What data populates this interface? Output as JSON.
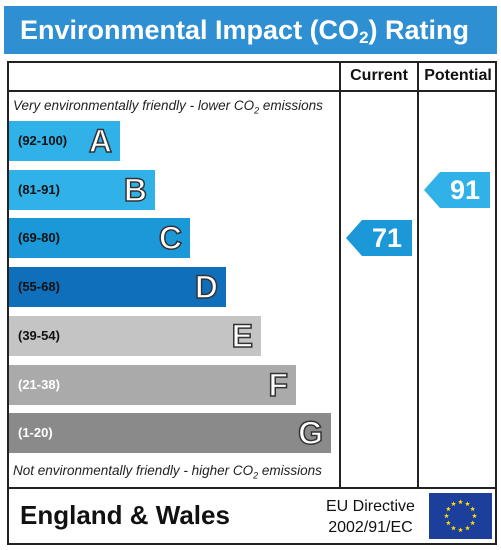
{
  "header": {
    "title_pre": "Environmental Impact (CO",
    "title_sub": "2",
    "title_post": ") Rating"
  },
  "columns": {
    "current": "Current",
    "potential": "Potential"
  },
  "notes": {
    "top_pre": "Very environmentally friendly - lower CO",
    "top_sub": "2",
    "top_post": " emissions",
    "bottom_pre": "Not environmentally friendly - higher CO",
    "bottom_sub": "2",
    "bottom_post": " emissions"
  },
  "chart_data": {
    "type": "bar",
    "title": "Environmental Impact (CO2) Rating",
    "bands": [
      {
        "range": "(92-100)",
        "letter": "A",
        "color": "#30b1e8",
        "range_color": "#111111"
      },
      {
        "range": "(81-91)",
        "letter": "B",
        "color": "#30b1e8",
        "range_color": "#111111"
      },
      {
        "range": "(69-80)",
        "letter": "C",
        "color": "#1a98d8",
        "range_color": "#111111"
      },
      {
        "range": "(55-68)",
        "letter": "D",
        "color": "#0f6fbb",
        "range_color": "#111111"
      },
      {
        "range": "(39-54)",
        "letter": "E",
        "color": "#c4c4c4",
        "range_color": "#111111"
      },
      {
        "range": "(21-38)",
        "letter": "F",
        "color": "#aaaaaa",
        "range_color": "#ffffff"
      },
      {
        "range": "(1-20)",
        "letter": "G",
        "color": "#8a8a8a",
        "range_color": "#ffffff"
      }
    ],
    "current": {
      "value": 71,
      "band": "C",
      "color": "#1a98d8"
    },
    "potential": {
      "value": 91,
      "band": "B",
      "color": "#30b1e8"
    }
  },
  "footer": {
    "region": "England & Wales",
    "directive_line1": "EU Directive",
    "directive_line2": "2002/91/EC"
  },
  "colors": {
    "header": "#2e8fd2",
    "eu_flag": "#1c3f9b",
    "eu_stars": "#ffdd00"
  }
}
